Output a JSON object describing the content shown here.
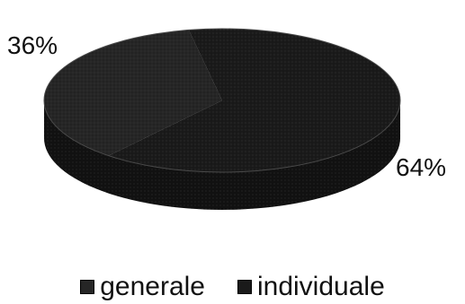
{
  "chart_data": {
    "type": "pie",
    "style": "3d",
    "slices": [
      {
        "label": "generale",
        "value": 36,
        "label_text": "36%",
        "color": "#262626"
      },
      {
        "label": "individuale",
        "value": 64,
        "label_text": "64%",
        "color": "#1a1a1a"
      }
    ],
    "legend": {
      "placement": "bottom",
      "entries": [
        "generale",
        "individuale"
      ]
    }
  }
}
